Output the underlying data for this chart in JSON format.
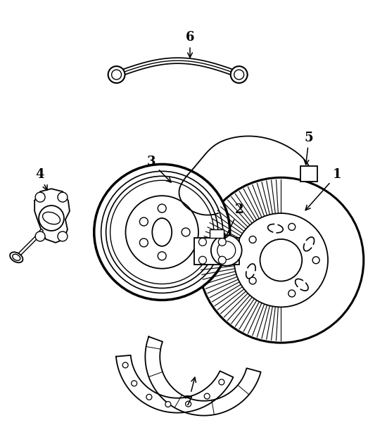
{
  "bg_color": "#ffffff",
  "line_color": "#000000",
  "fig_width": 5.5,
  "fig_height": 6.31,
  "dpi": 100
}
